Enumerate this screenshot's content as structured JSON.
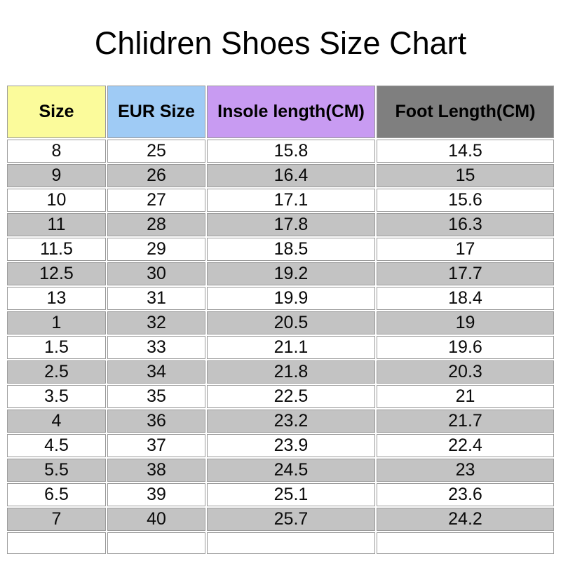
{
  "title": "Chlidren Shoes Size Chart",
  "chart_data": {
    "type": "table",
    "title": "Chlidren Shoes Size Chart",
    "columns": [
      "Size",
      "EUR Size",
      "Insole length(CM)",
      "Foot Length(CM)"
    ],
    "header_colors": [
      "#fbfb9b",
      "#9fcbf5",
      "#c89bf2",
      "#7f7f7f"
    ],
    "row_alt_colors": [
      "#ffffff",
      "#c3c3c3"
    ],
    "grid_color": "#9b9b9b",
    "rows": [
      [
        "8",
        "25",
        "15.8",
        "14.5"
      ],
      [
        "9",
        "26",
        "16.4",
        "15"
      ],
      [
        "10",
        "27",
        "17.1",
        "15.6"
      ],
      [
        "11",
        "28",
        "17.8",
        "16.3"
      ],
      [
        "11.5",
        "29",
        "18.5",
        "17"
      ],
      [
        "12.5",
        "30",
        "19.2",
        "17.7"
      ],
      [
        "13",
        "31",
        "19.9",
        "18.4"
      ],
      [
        "1",
        "32",
        "20.5",
        "19"
      ],
      [
        "1.5",
        "33",
        "21.1",
        "19.6"
      ],
      [
        "2.5",
        "34",
        "21.8",
        "20.3"
      ],
      [
        "3.5",
        "35",
        "22.5",
        "21"
      ],
      [
        "4",
        "36",
        "23.2",
        "21.7"
      ],
      [
        "4.5",
        "37",
        "23.9",
        "22.4"
      ],
      [
        "5.5",
        "38",
        "24.5",
        "23"
      ],
      [
        "6.5",
        "39",
        "25.1",
        "23.6"
      ],
      [
        "7",
        "40",
        "25.7",
        "24.2"
      ],
      [
        "",
        "",
        "",
        ""
      ]
    ]
  }
}
